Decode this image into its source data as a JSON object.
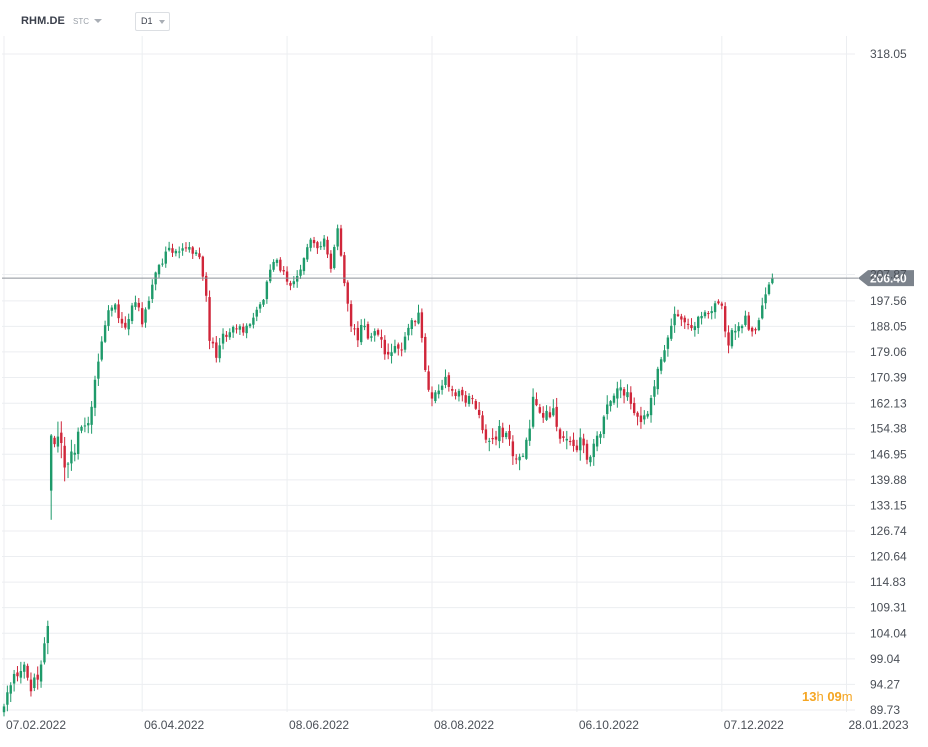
{
  "toolbar": {
    "symbol": "RHM.DE",
    "type_label": "STC",
    "type_icon": "chevron-down-icon",
    "timeframe": "D1",
    "timeframe_icon": "chevron-down-icon"
  },
  "countdown": {
    "hours": "13",
    "hours_unit": "h",
    "minutes": "09",
    "minutes_unit": "m",
    "color": "#f5a623"
  },
  "colors": {
    "up": "#1e9a6a",
    "down": "#d0263a",
    "grid": "#eceef1",
    "price_line": "#8c9199",
    "price_tag": "#7c838c",
    "axis_text": "#4a4f57"
  },
  "chart_data": {
    "type": "candlestick",
    "symbol": "RHM.DE",
    "timeframe": "D1",
    "current_price": 206.4,
    "current_price_label": "206.40",
    "y_ticks": [
      "318.05",
      "207.87",
      "197.56",
      "188.05",
      "179.06",
      "170.39",
      "162.13",
      "154.38",
      "146.95",
      "139.88",
      "133.15",
      "126.74",
      "120.64",
      "114.83",
      "109.31",
      "104.04",
      "99.04",
      "94.27",
      "89.73"
    ],
    "y_scale": "log",
    "ylim": [
      89.73,
      318.05
    ],
    "x_ticks": [
      {
        "label": "07.02.2022",
        "index": 0
      },
      {
        "label": "06.04.2022",
        "index": 41
      },
      {
        "label": "08.06.2022",
        "index": 84
      },
      {
        "label": "08.08.2022",
        "index": 127
      },
      {
        "label": "06.10.2022",
        "index": 170
      },
      {
        "label": "07.12.2022",
        "index": 213
      },
      {
        "label": "28.01.2023",
        "index": 250
      }
    ],
    "grid": true,
    "anchors": [
      [
        0,
        91.0,
        1.2
      ],
      [
        3,
        95.5,
        1.8
      ],
      [
        6,
        97.0,
        1.5
      ],
      [
        8,
        93.0,
        2.0
      ],
      [
        11,
        98.0,
        2.0
      ],
      [
        13,
        104.0,
        2.2
      ],
      [
        14,
        155.0,
        7.0
      ],
      [
        16,
        150.0,
        5.0
      ],
      [
        19,
        145.0,
        4.0
      ],
      [
        22,
        152.0,
        3.0
      ],
      [
        25,
        155.0,
        3.0
      ],
      [
        27,
        170.0,
        3.0
      ],
      [
        29,
        182.0,
        3.0
      ],
      [
        31,
        194.0,
        3.0
      ],
      [
        33,
        197.0,
        2.5
      ],
      [
        34,
        190.0,
        2.5
      ],
      [
        36,
        186.0,
        2.5
      ],
      [
        38,
        197.0,
        2.5
      ],
      [
        40,
        194.0,
        2.5
      ],
      [
        41,
        190.0,
        2.5
      ],
      [
        43,
        198.0,
        2.5
      ],
      [
        45,
        210.0,
        2.5
      ],
      [
        47,
        214.0,
        2.5
      ],
      [
        49,
        220.0,
        2.5
      ],
      [
        51,
        216.0,
        2.5
      ],
      [
        53,
        220.0,
        2.5
      ],
      [
        55,
        218.0,
        2.5
      ],
      [
        58,
        214.0,
        2.5
      ],
      [
        60,
        200.0,
        3.0
      ],
      [
        61,
        182.0,
        3.0
      ],
      [
        63,
        178.0,
        3.0
      ],
      [
        65,
        184.0,
        2.5
      ],
      [
        67,
        185.0,
        2.0
      ],
      [
        69,
        188.0,
        2.0
      ],
      [
        71,
        187.0,
        2.0
      ],
      [
        73,
        190.0,
        2.0
      ],
      [
        75,
        193.0,
        2.0
      ],
      [
        77,
        198.0,
        2.0
      ],
      [
        79,
        210.0,
        2.5
      ],
      [
        81,
        213.0,
        2.5
      ],
      [
        83,
        208.0,
        2.5
      ],
      [
        85,
        204.0,
        2.5
      ],
      [
        87,
        207.0,
        2.5
      ],
      [
        89,
        214.0,
        2.5
      ],
      [
        91,
        224.0,
        2.5
      ],
      [
        93,
        218.0,
        2.5
      ],
      [
        95,
        223.0,
        2.5
      ],
      [
        97,
        209.0,
        2.5
      ],
      [
        99,
        226.0,
        2.5
      ],
      [
        101,
        205.0,
        3.0
      ],
      [
        103,
        188.0,
        3.0
      ],
      [
        105,
        185.0,
        3.0
      ],
      [
        107,
        188.0,
        3.0
      ],
      [
        109,
        183.0,
        3.0
      ],
      [
        111,
        186.0,
        3.0
      ],
      [
        113,
        180.0,
        3.0
      ],
      [
        115,
        178.0,
        3.0
      ],
      [
        117,
        180.0,
        3.0
      ],
      [
        119,
        183.0,
        3.0
      ],
      [
        121,
        191.0,
        3.0
      ],
      [
        123,
        193.0,
        3.0
      ],
      [
        125,
        172.0,
        3.0
      ],
      [
        127,
        165.0,
        3.0
      ],
      [
        129,
        167.0,
        2.5
      ],
      [
        131,
        170.0,
        2.5
      ],
      [
        133,
        167.0,
        2.5
      ],
      [
        135,
        165.0,
        2.5
      ],
      [
        137,
        163.0,
        2.5
      ],
      [
        139,
        164.0,
        2.5
      ],
      [
        141,
        158.0,
        2.5
      ],
      [
        143,
        153.0,
        3.0
      ],
      [
        145,
        150.0,
        3.0
      ],
      [
        147,
        154.0,
        2.5
      ],
      [
        149,
        152.0,
        2.5
      ],
      [
        151,
        148.0,
        3.0
      ],
      [
        153,
        145.0,
        3.0
      ],
      [
        155,
        150.0,
        3.0
      ],
      [
        157,
        163.0,
        3.0
      ],
      [
        159,
        160.0,
        3.0
      ],
      [
        161,
        159.0,
        3.0
      ],
      [
        163,
        159.0,
        3.0
      ],
      [
        165,
        152.0,
        3.0
      ],
      [
        167,
        150.0,
        3.0
      ],
      [
        169,
        148.0,
        3.0
      ],
      [
        171,
        151.0,
        3.0
      ],
      [
        173,
        146.0,
        3.0
      ],
      [
        175,
        150.0,
        3.0
      ],
      [
        177,
        153.0,
        3.0
      ],
      [
        179,
        160.0,
        3.0
      ],
      [
        181,
        166.0,
        3.0
      ],
      [
        183,
        167.0,
        3.0
      ],
      [
        185,
        165.0,
        3.0
      ],
      [
        187,
        161.0,
        3.0
      ],
      [
        189,
        157.0,
        3.0
      ],
      [
        191,
        160.0,
        3.0
      ],
      [
        193,
        167.0,
        3.0
      ],
      [
        195,
        176.0,
        3.0
      ],
      [
        197,
        184.0,
        3.0
      ],
      [
        199,
        193.0,
        3.0
      ],
      [
        201,
        192.0,
        2.5
      ],
      [
        203,
        190.0,
        2.5
      ],
      [
        205,
        188.0,
        2.5
      ],
      [
        207,
        193.0,
        2.5
      ],
      [
        209,
        194.0,
        2.5
      ],
      [
        211,
        195.0,
        2.5
      ],
      [
        213,
        196.0,
        2.5
      ],
      [
        214,
        188.0,
        3.0
      ],
      [
        215,
        181.0,
        3.0
      ],
      [
        216,
        185.0,
        3.0
      ],
      [
        218,
        189.0,
        3.0
      ],
      [
        220,
        190.0,
        3.0
      ],
      [
        222,
        185.0,
        3.0
      ],
      [
        224,
        192.0,
        3.0
      ],
      [
        226,
        198.0,
        3.0
      ],
      [
        228,
        206.4,
        2.0
      ]
    ]
  }
}
